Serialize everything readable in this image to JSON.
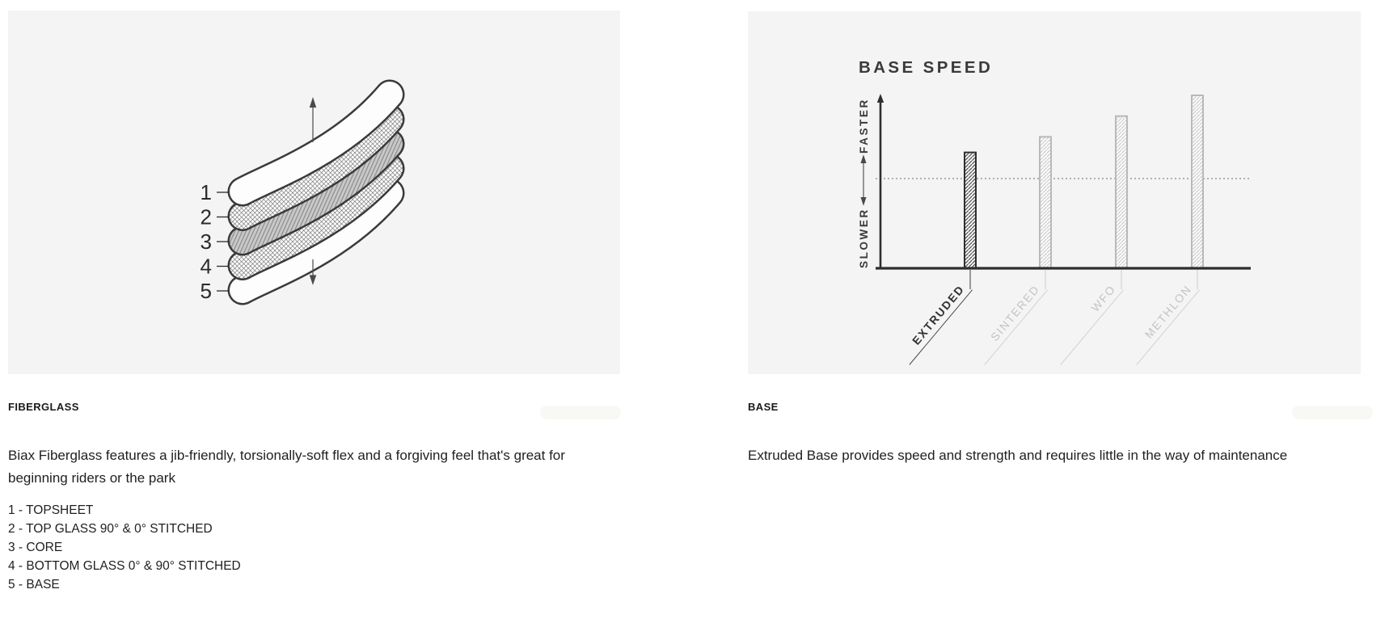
{
  "left_panel": {
    "heading": "FIBERGLASS",
    "paragraph": "Biax Fiberglass features a jib-friendly, torsionally-soft flex and a forgiving feel that's great for beginning riders or the park",
    "list": [
      "1 - TOPSHEET",
      "2 - TOP GLASS 90° & 0° STITCHED",
      "3 - CORE",
      "4 - BOTTOM GLASS 0° & 90° STITCHED",
      "5 - BASE"
    ],
    "diagram": {
      "layers": [
        {
          "num": "1",
          "label": "TOPSHEET",
          "fill": "plain"
        },
        {
          "num": "2",
          "label": "TOP GLASS 90° & 0° STITCHED",
          "fill": "cross"
        },
        {
          "num": "3",
          "label": "CORE",
          "fill": "core"
        },
        {
          "num": "4",
          "label": "BOTTOM GLASS 0° & 90° STITCHED",
          "fill": "cross"
        },
        {
          "num": "5",
          "label": "BASE",
          "fill": "plain"
        }
      ]
    }
  },
  "right_panel": {
    "heading": "BASE",
    "paragraph": "Extruded Base provides speed and strength and requires little in the way of maintenance"
  },
  "chart_data": {
    "type": "bar",
    "title": "BASE SPEED",
    "categories": [
      "EXTRUDED",
      "SINTERED",
      "WFO",
      "METHLON"
    ],
    "values": [
      67,
      76,
      88,
      100
    ],
    "highlighted_category": "EXTRUDED",
    "ylabel_top": "FASTER",
    "ylabel_bottom": "SLOWER",
    "midline_value": 52,
    "ylim": [
      0,
      100
    ],
    "grid": "single dotted horizontal midline",
    "legend": "none",
    "colors": {
      "active": "#333333",
      "inactive": "#c5c5c5",
      "axis": "#2e2e2e",
      "midline": "#9a9a9a"
    }
  }
}
